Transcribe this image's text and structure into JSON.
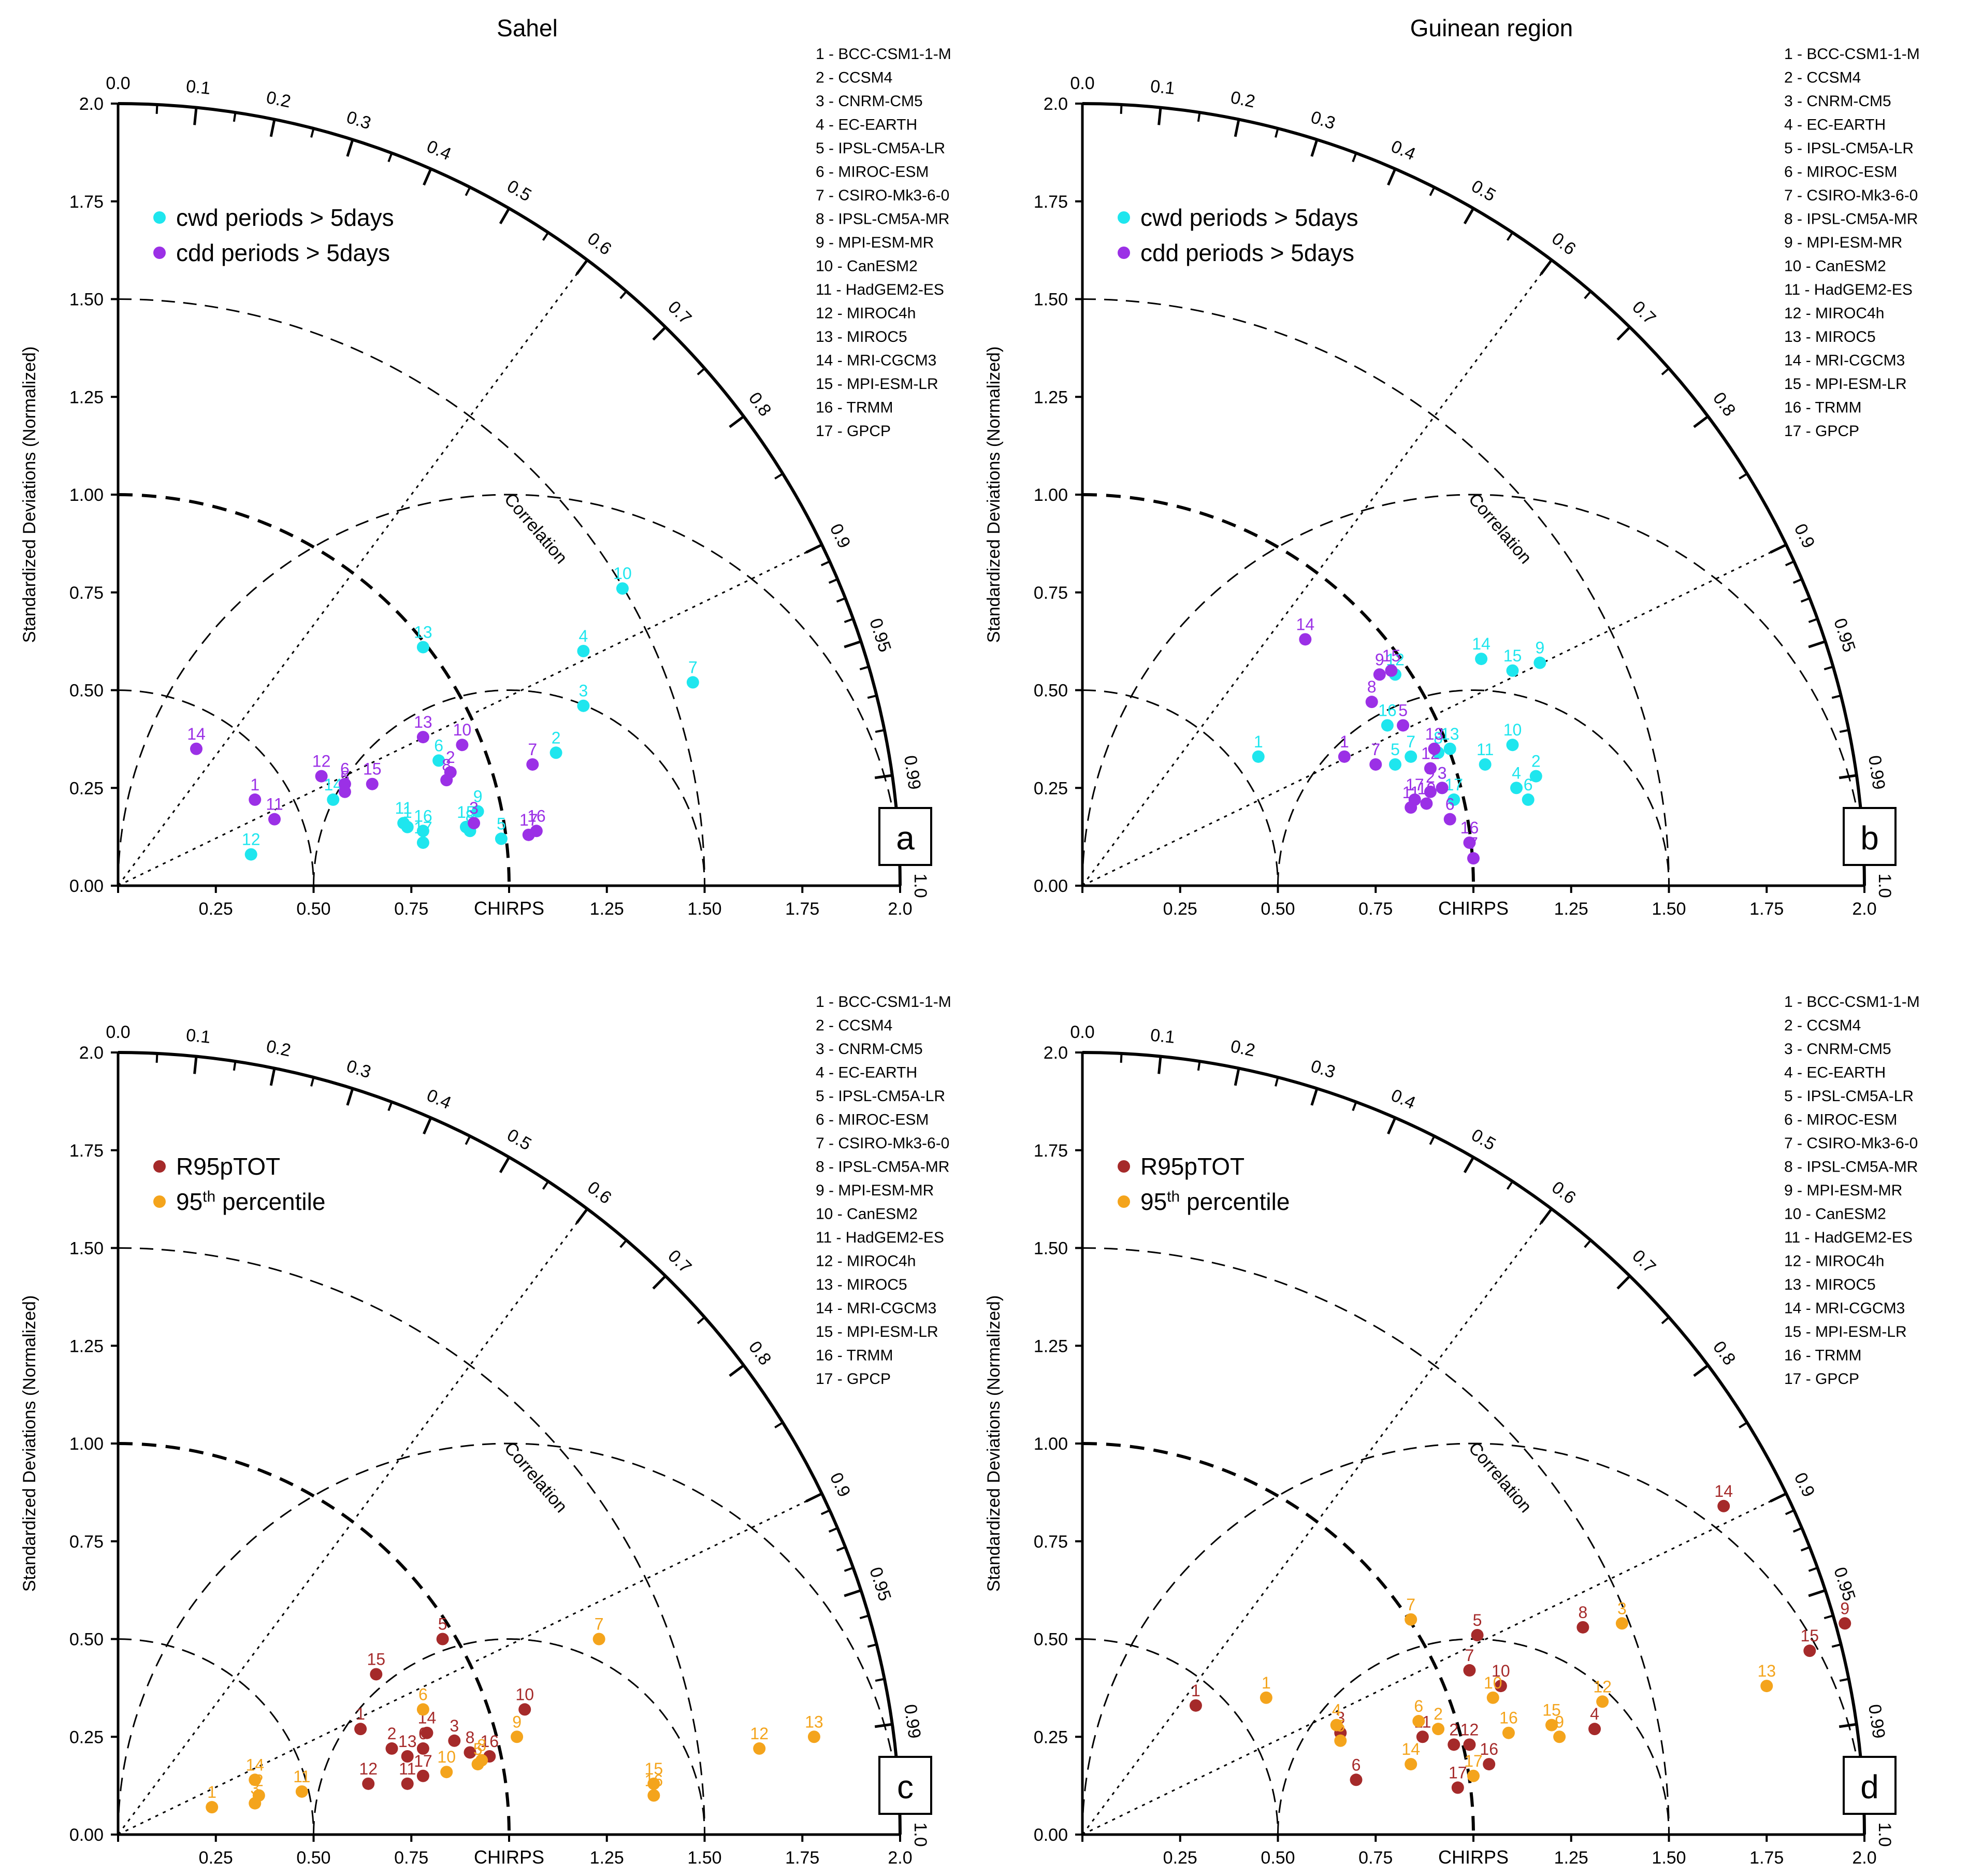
{
  "figure": {
    "colors": {
      "axis": "#000000",
      "cwd": "#1ee6ee",
      "cdd": "#9b30e6",
      "r95": "#a52a2a",
      "p95": "#f4a41c"
    },
    "model_legend": [
      "1 - BCC-CSM1-1-M",
      "2 - CCSM4",
      "3 - CNRM-CM5",
      "4 - EC-EARTH",
      "5 - IPSL-CM5A-LR",
      "6 - MIROC-ESM",
      "7 - CSIRO-Mk3-6-0",
      "8 - IPSL-CM5A-MR",
      "9 - MPI-ESM-MR",
      "10 - CanESM2",
      "11 - HadGEM2-ES",
      "12 - MIROC4h",
      "13 - MIROC5",
      "14 - MRI-CGCM3",
      "15 - MPI-ESM-LR",
      "16 - TRMM",
      "17 - GPCP"
    ]
  },
  "chart_data": [
    {
      "type": "scatter",
      "subtype": "taylor-diagram",
      "panel": "a",
      "title": "Sahel",
      "ylabel": "Standardized Deviations (Normalized)",
      "xlabel_ref": "CHIRPS",
      "arc_label": "Correlation",
      "std_ticks": [
        "0.00",
        "0.25",
        "0.50",
        "0.75",
        "1.00",
        "1.25",
        "1.50",
        "1.75",
        "2.0"
      ],
      "corr_ticks": [
        "0.0",
        "0.1",
        "0.2",
        "0.3",
        "0.4",
        "0.5",
        "0.6",
        "0.7",
        "0.8",
        "0.9",
        "0.95",
        "0.99",
        "1.0"
      ],
      "ylim": [
        0,
        2
      ],
      "series": [
        {
          "name": "cwd periods > 5days",
          "color_key": "cwd",
          "points": [
            {
              "label": "1",
              "x": 0.74,
              "y": 0.15
            },
            {
              "label": "2",
              "x": 1.12,
              "y": 0.34
            },
            {
              "label": "3",
              "x": 1.19,
              "y": 0.46
            },
            {
              "label": "4",
              "x": 1.19,
              "y": 0.6
            },
            {
              "label": "5",
              "x": 0.98,
              "y": 0.12
            },
            {
              "label": "6",
              "x": 0.82,
              "y": 0.32
            },
            {
              "label": "7",
              "x": 1.47,
              "y": 0.52
            },
            {
              "label": "8",
              "x": 0.9,
              "y": 0.14
            },
            {
              "label": "9",
              "x": 0.92,
              "y": 0.19
            },
            {
              "label": "10",
              "x": 1.29,
              "y": 0.76
            },
            {
              "label": "11",
              "x": 0.73,
              "y": 0.16
            },
            {
              "label": "12",
              "x": 0.34,
              "y": 0.08
            },
            {
              "label": "13",
              "x": 0.78,
              "y": 0.61
            },
            {
              "label": "14",
              "x": 0.55,
              "y": 0.22
            },
            {
              "label": "15",
              "x": 0.89,
              "y": 0.15
            },
            {
              "label": "16",
              "x": 0.78,
              "y": 0.14
            },
            {
              "label": "17",
              "x": 0.78,
              "y": 0.11
            }
          ]
        },
        {
          "name": "cdd periods > 5days",
          "color_key": "cdd",
          "points": [
            {
              "label": "1",
              "x": 0.35,
              "y": 0.22
            },
            {
              "label": "2",
              "x": 0.85,
              "y": 0.29
            },
            {
              "label": "3",
              "x": 0.91,
              "y": 0.16
            },
            {
              "label": "5",
              "x": 0.58,
              "y": 0.24
            },
            {
              "label": "6",
              "x": 0.58,
              "y": 0.26
            },
            {
              "label": "7",
              "x": 1.06,
              "y": 0.31
            },
            {
              "label": "8",
              "x": 0.84,
              "y": 0.27
            },
            {
              "label": "10",
              "x": 0.88,
              "y": 0.36
            },
            {
              "label": "11",
              "x": 0.4,
              "y": 0.17
            },
            {
              "label": "12",
              "x": 0.52,
              "y": 0.28
            },
            {
              "label": "13",
              "x": 0.78,
              "y": 0.38
            },
            {
              "label": "14",
              "x": 0.2,
              "y": 0.35
            },
            {
              "label": "15",
              "x": 0.65,
              "y": 0.26
            },
            {
              "label": "16",
              "x": 1.07,
              "y": 0.14
            },
            {
              "label": "17",
              "x": 1.05,
              "y": 0.13
            }
          ]
        }
      ]
    },
    {
      "type": "scatter",
      "subtype": "taylor-diagram",
      "panel": "b",
      "title": "Guinean region",
      "ylabel": "Standardized Deviations (Normalized)",
      "xlabel_ref": "CHIRPS",
      "arc_label": "Correlation",
      "std_ticks": [
        "0.00",
        "0.25",
        "0.50",
        "0.75",
        "1.00",
        "1.25",
        "1.50",
        "1.75",
        "2.0"
      ],
      "corr_ticks": [
        "0.0",
        "0.1",
        "0.2",
        "0.3",
        "0.4",
        "0.5",
        "0.6",
        "0.7",
        "0.8",
        "0.9",
        "0.95",
        "0.99",
        "1.0"
      ],
      "ylim": [
        0,
        2
      ],
      "series": [
        {
          "name": "cwd periods > 5days",
          "color_key": "cwd",
          "points": [
            {
              "label": "1",
              "x": 0.45,
              "y": 0.33
            },
            {
              "label": "2",
              "x": 1.16,
              "y": 0.28
            },
            {
              "label": "3",
              "x": 0.92,
              "y": 0.25
            },
            {
              "label": "4",
              "x": 1.11,
              "y": 0.25
            },
            {
              "label": "5",
              "x": 0.8,
              "y": 0.31
            },
            {
              "label": "6",
              "x": 1.14,
              "y": 0.22
            },
            {
              "label": "7",
              "x": 0.84,
              "y": 0.33
            },
            {
              "label": "8",
              "x": 0.91,
              "y": 0.34
            },
            {
              "label": "9",
              "x": 1.17,
              "y": 0.57
            },
            {
              "label": "10",
              "x": 1.1,
              "y": 0.36
            },
            {
              "label": "11",
              "x": 1.03,
              "y": 0.31
            },
            {
              "label": "12",
              "x": 0.8,
              "y": 0.54
            },
            {
              "label": "13",
              "x": 0.94,
              "y": 0.35
            },
            {
              "label": "14",
              "x": 1.02,
              "y": 0.58
            },
            {
              "label": "15",
              "x": 1.1,
              "y": 0.55
            },
            {
              "label": "16",
              "x": 0.78,
              "y": 0.41
            },
            {
              "label": "17",
              "x": 0.95,
              "y": 0.22
            }
          ]
        },
        {
          "name": "cdd periods > 5days",
          "color_key": "cdd",
          "points": [
            {
              "label": "1",
              "x": 0.67,
              "y": 0.33
            },
            {
              "label": "2",
              "x": 0.89,
              "y": 0.24
            },
            {
              "label": "3",
              "x": 0.92,
              "y": 0.25
            },
            {
              "label": "5",
              "x": 0.82,
              "y": 0.41
            },
            {
              "label": "6",
              "x": 0.94,
              "y": 0.17
            },
            {
              "label": "7",
              "x": 1.0,
              "y": 0.07
            },
            {
              "label": "8",
              "x": 0.74,
              "y": 0.47
            },
            {
              "label": "9",
              "x": 0.76,
              "y": 0.54
            },
            {
              "label": "10",
              "x": 0.88,
              "y": 0.21
            },
            {
              "label": "11",
              "x": 0.84,
              "y": 0.2
            },
            {
              "label": "12",
              "x": 0.89,
              "y": 0.3
            },
            {
              "label": "13",
              "x": 0.9,
              "y": 0.35
            },
            {
              "label": "14",
              "x": 0.57,
              "y": 0.63
            },
            {
              "label": "15",
              "x": 0.79,
              "y": 0.55
            },
            {
              "label": "16",
              "x": 0.99,
              "y": 0.11
            },
            {
              "label": "7b",
              "text": "7",
              "x": 0.75,
              "y": 0.31
            },
            {
              "label": "17",
              "x": 0.85,
              "y": 0.22
            }
          ]
        }
      ]
    },
    {
      "type": "scatter",
      "subtype": "taylor-diagram",
      "panel": "c",
      "title": "",
      "ylabel": "Standardized Deviations (Normalized)",
      "xlabel_ref": "CHIRPS",
      "arc_label": "Correlation",
      "std_ticks": [
        "0.00",
        "0.25",
        "0.50",
        "0.75",
        "1.00",
        "1.25",
        "1.50",
        "1.75",
        "2.0"
      ],
      "corr_ticks": [
        "0.0",
        "0.1",
        "0.2",
        "0.3",
        "0.4",
        "0.5",
        "0.6",
        "0.7",
        "0.8",
        "0.9",
        "0.95",
        "0.99",
        "1.0"
      ],
      "ylim": [
        0,
        2
      ],
      "series": [
        {
          "name": "R95pTOT",
          "color_key": "r95",
          "points": [
            {
              "label": "1",
              "x": 0.62,
              "y": 0.27
            },
            {
              "label": "2",
              "x": 0.7,
              "y": 0.22
            },
            {
              "label": "3",
              "x": 0.86,
              "y": 0.24
            },
            {
              "label": "5",
              "x": 0.83,
              "y": 0.5
            },
            {
              "label": "6",
              "x": 0.78,
              "y": 0.22
            },
            {
              "label": "8",
              "x": 0.9,
              "y": 0.21
            },
            {
              "label": "10",
              "x": 1.04,
              "y": 0.32
            },
            {
              "label": "11",
              "x": 0.74,
              "y": 0.13
            },
            {
              "label": "12",
              "x": 0.64,
              "y": 0.13
            },
            {
              "label": "13",
              "x": 0.74,
              "y": 0.2
            },
            {
              "label": "14",
              "x": 0.79,
              "y": 0.26
            },
            {
              "label": "15",
              "x": 0.66,
              "y": 0.41
            },
            {
              "label": "16",
              "x": 0.95,
              "y": 0.2
            },
            {
              "label": "17",
              "x": 0.78,
              "y": 0.15
            }
          ]
        },
        {
          "name": "95th percentile",
          "color_key": "p95",
          "points": [
            {
              "label": "1",
              "x": 0.24,
              "y": 0.07
            },
            {
              "label": "2",
              "x": 0.36,
              "y": 0.1
            },
            {
              "label": "3",
              "x": 0.35,
              "y": 0.08
            },
            {
              "label": "5",
              "x": 0.92,
              "y": 0.18
            },
            {
              "label": "6",
              "x": 0.78,
              "y": 0.32
            },
            {
              "label": "7",
              "x": 1.23,
              "y": 0.5
            },
            {
              "label": "8",
              "x": 0.93,
              "y": 0.19
            },
            {
              "label": "9",
              "x": 1.02,
              "y": 0.25
            },
            {
              "label": "10",
              "x": 0.84,
              "y": 0.16
            },
            {
              "label": "11",
              "x": 0.47,
              "y": 0.11
            },
            {
              "label": "12",
              "x": 1.64,
              "y": 0.22
            },
            {
              "label": "13",
              "x": 1.78,
              "y": 0.25
            },
            {
              "label": "14",
              "x": 0.35,
              "y": 0.14
            },
            {
              "label": "15",
              "x": 1.37,
              "y": 0.13
            },
            {
              "label": "16",
              "x": 1.37,
              "y": 0.1
            }
          ]
        }
      ],
      "legend_superscript": "th"
    },
    {
      "type": "scatter",
      "subtype": "taylor-diagram",
      "panel": "d",
      "title": "",
      "ylabel": "Standardized Deviations (Normalized)",
      "xlabel_ref": "CHIRPS",
      "arc_label": "Correlation",
      "std_ticks": [
        "0.00",
        "0.25",
        "0.50",
        "0.75",
        "1.00",
        "1.25",
        "1.50",
        "1.75",
        "2.0"
      ],
      "corr_ticks": [
        "0.0",
        "0.1",
        "0.2",
        "0.3",
        "0.4",
        "0.5",
        "0.6",
        "0.7",
        "0.8",
        "0.9",
        "0.95",
        "0.99",
        "1.0"
      ],
      "ylim": [
        0,
        2
      ],
      "series": [
        {
          "name": "R95pTOT",
          "color_key": "r95",
          "points": [
            {
              "label": "1",
              "x": 0.29,
              "y": 0.33
            },
            {
              "label": "2",
              "x": 0.95,
              "y": 0.23
            },
            {
              "label": "3",
              "x": 0.66,
              "y": 0.26
            },
            {
              "label": "4",
              "x": 1.31,
              "y": 0.27
            },
            {
              "label": "5",
              "x": 1.01,
              "y": 0.51
            },
            {
              "label": "6",
              "x": 0.7,
              "y": 0.14
            },
            {
              "label": "7",
              "x": 0.99,
              "y": 0.42
            },
            {
              "label": "8",
              "x": 1.28,
              "y": 0.53
            },
            {
              "label": "9",
              "x": 1.95,
              "y": 0.54
            },
            {
              "label": "10",
              "x": 1.07,
              "y": 0.38
            },
            {
              "label": "11",
              "x": 0.87,
              "y": 0.25
            },
            {
              "label": "12",
              "x": 0.99,
              "y": 0.23
            },
            {
              "label": "14",
              "x": 1.64,
              "y": 0.84
            },
            {
              "label": "15",
              "x": 1.86,
              "y": 0.47
            },
            {
              "label": "16",
              "x": 1.04,
              "y": 0.18
            },
            {
              "label": "17",
              "x": 0.96,
              "y": 0.12
            }
          ]
        },
        {
          "name": "95th percentile",
          "color_key": "p95",
          "points": [
            {
              "label": "1",
              "x": 0.47,
              "y": 0.35
            },
            {
              "label": "2",
              "x": 0.91,
              "y": 0.27
            },
            {
              "label": "3",
              "x": 1.38,
              "y": 0.54
            },
            {
              "label": "4",
              "x": 0.65,
              "y": 0.28
            },
            {
              "label": "5",
              "x": 0.66,
              "y": 0.24
            },
            {
              "label": "6",
              "x": 0.86,
              "y": 0.29
            },
            {
              "label": "7",
              "x": 0.84,
              "y": 0.55
            },
            {
              "label": "9",
              "x": 1.22,
              "y": 0.25
            },
            {
              "label": "10",
              "x": 1.05,
              "y": 0.35
            },
            {
              "label": "12",
              "x": 1.33,
              "y": 0.34
            },
            {
              "label": "13",
              "x": 1.75,
              "y": 0.38
            },
            {
              "label": "14",
              "x": 0.84,
              "y": 0.18
            },
            {
              "label": "15",
              "x": 1.2,
              "y": 0.28
            },
            {
              "label": "16",
              "x": 1.09,
              "y": 0.26
            },
            {
              "label": "17",
              "x": 1.0,
              "y": 0.15
            }
          ]
        }
      ],
      "legend_superscript": "th"
    }
  ]
}
